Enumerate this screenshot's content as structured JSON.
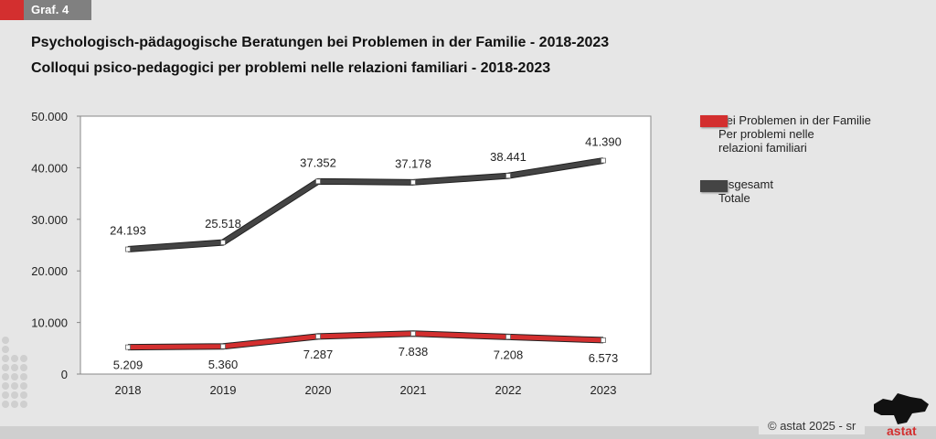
{
  "header": {
    "tag": "Graf. 4",
    "title_de": "Psychologisch-pädagogische Beratungen bei Problemen in der Familie - 2018-2023",
    "title_it": "Colloqui psico-pedagogici per problemi nelle relazioni familiari - 2018-2023"
  },
  "chart_data": {
    "type": "line",
    "categories": [
      "2018",
      "2019",
      "2020",
      "2021",
      "2022",
      "2023"
    ],
    "ylim": [
      0,
      50000
    ],
    "yticks": [
      0,
      10000,
      20000,
      30000,
      40000,
      50000
    ],
    "ytick_labels": [
      "0",
      "10.000",
      "20.000",
      "30.000",
      "40.000",
      "50.000"
    ],
    "grid": false,
    "legend_position": "right",
    "series": [
      {
        "name": "Bei Problemen in der Familie",
        "name_it_1": "Per problemi nelle",
        "name_it_2": "relazioni familiari",
        "color": "#d32f2f",
        "values": [
          5209,
          5360,
          7287,
          7838,
          7208,
          6573
        ],
        "labels": [
          "5.209",
          "5.360",
          "7.287",
          "7.838",
          "7.208",
          "6.573"
        ]
      },
      {
        "name": "Insgesamt",
        "name_it": "Totale",
        "color": "#444444",
        "values": [
          24193,
          25518,
          37352,
          37178,
          38441,
          41390
        ],
        "labels": [
          "24.193",
          "25.518",
          "37.352",
          "37.178",
          "38.441",
          "41.390"
        ]
      }
    ]
  },
  "footer": {
    "copyright": "©  astat 2025 - sr",
    "logo": "astat"
  }
}
